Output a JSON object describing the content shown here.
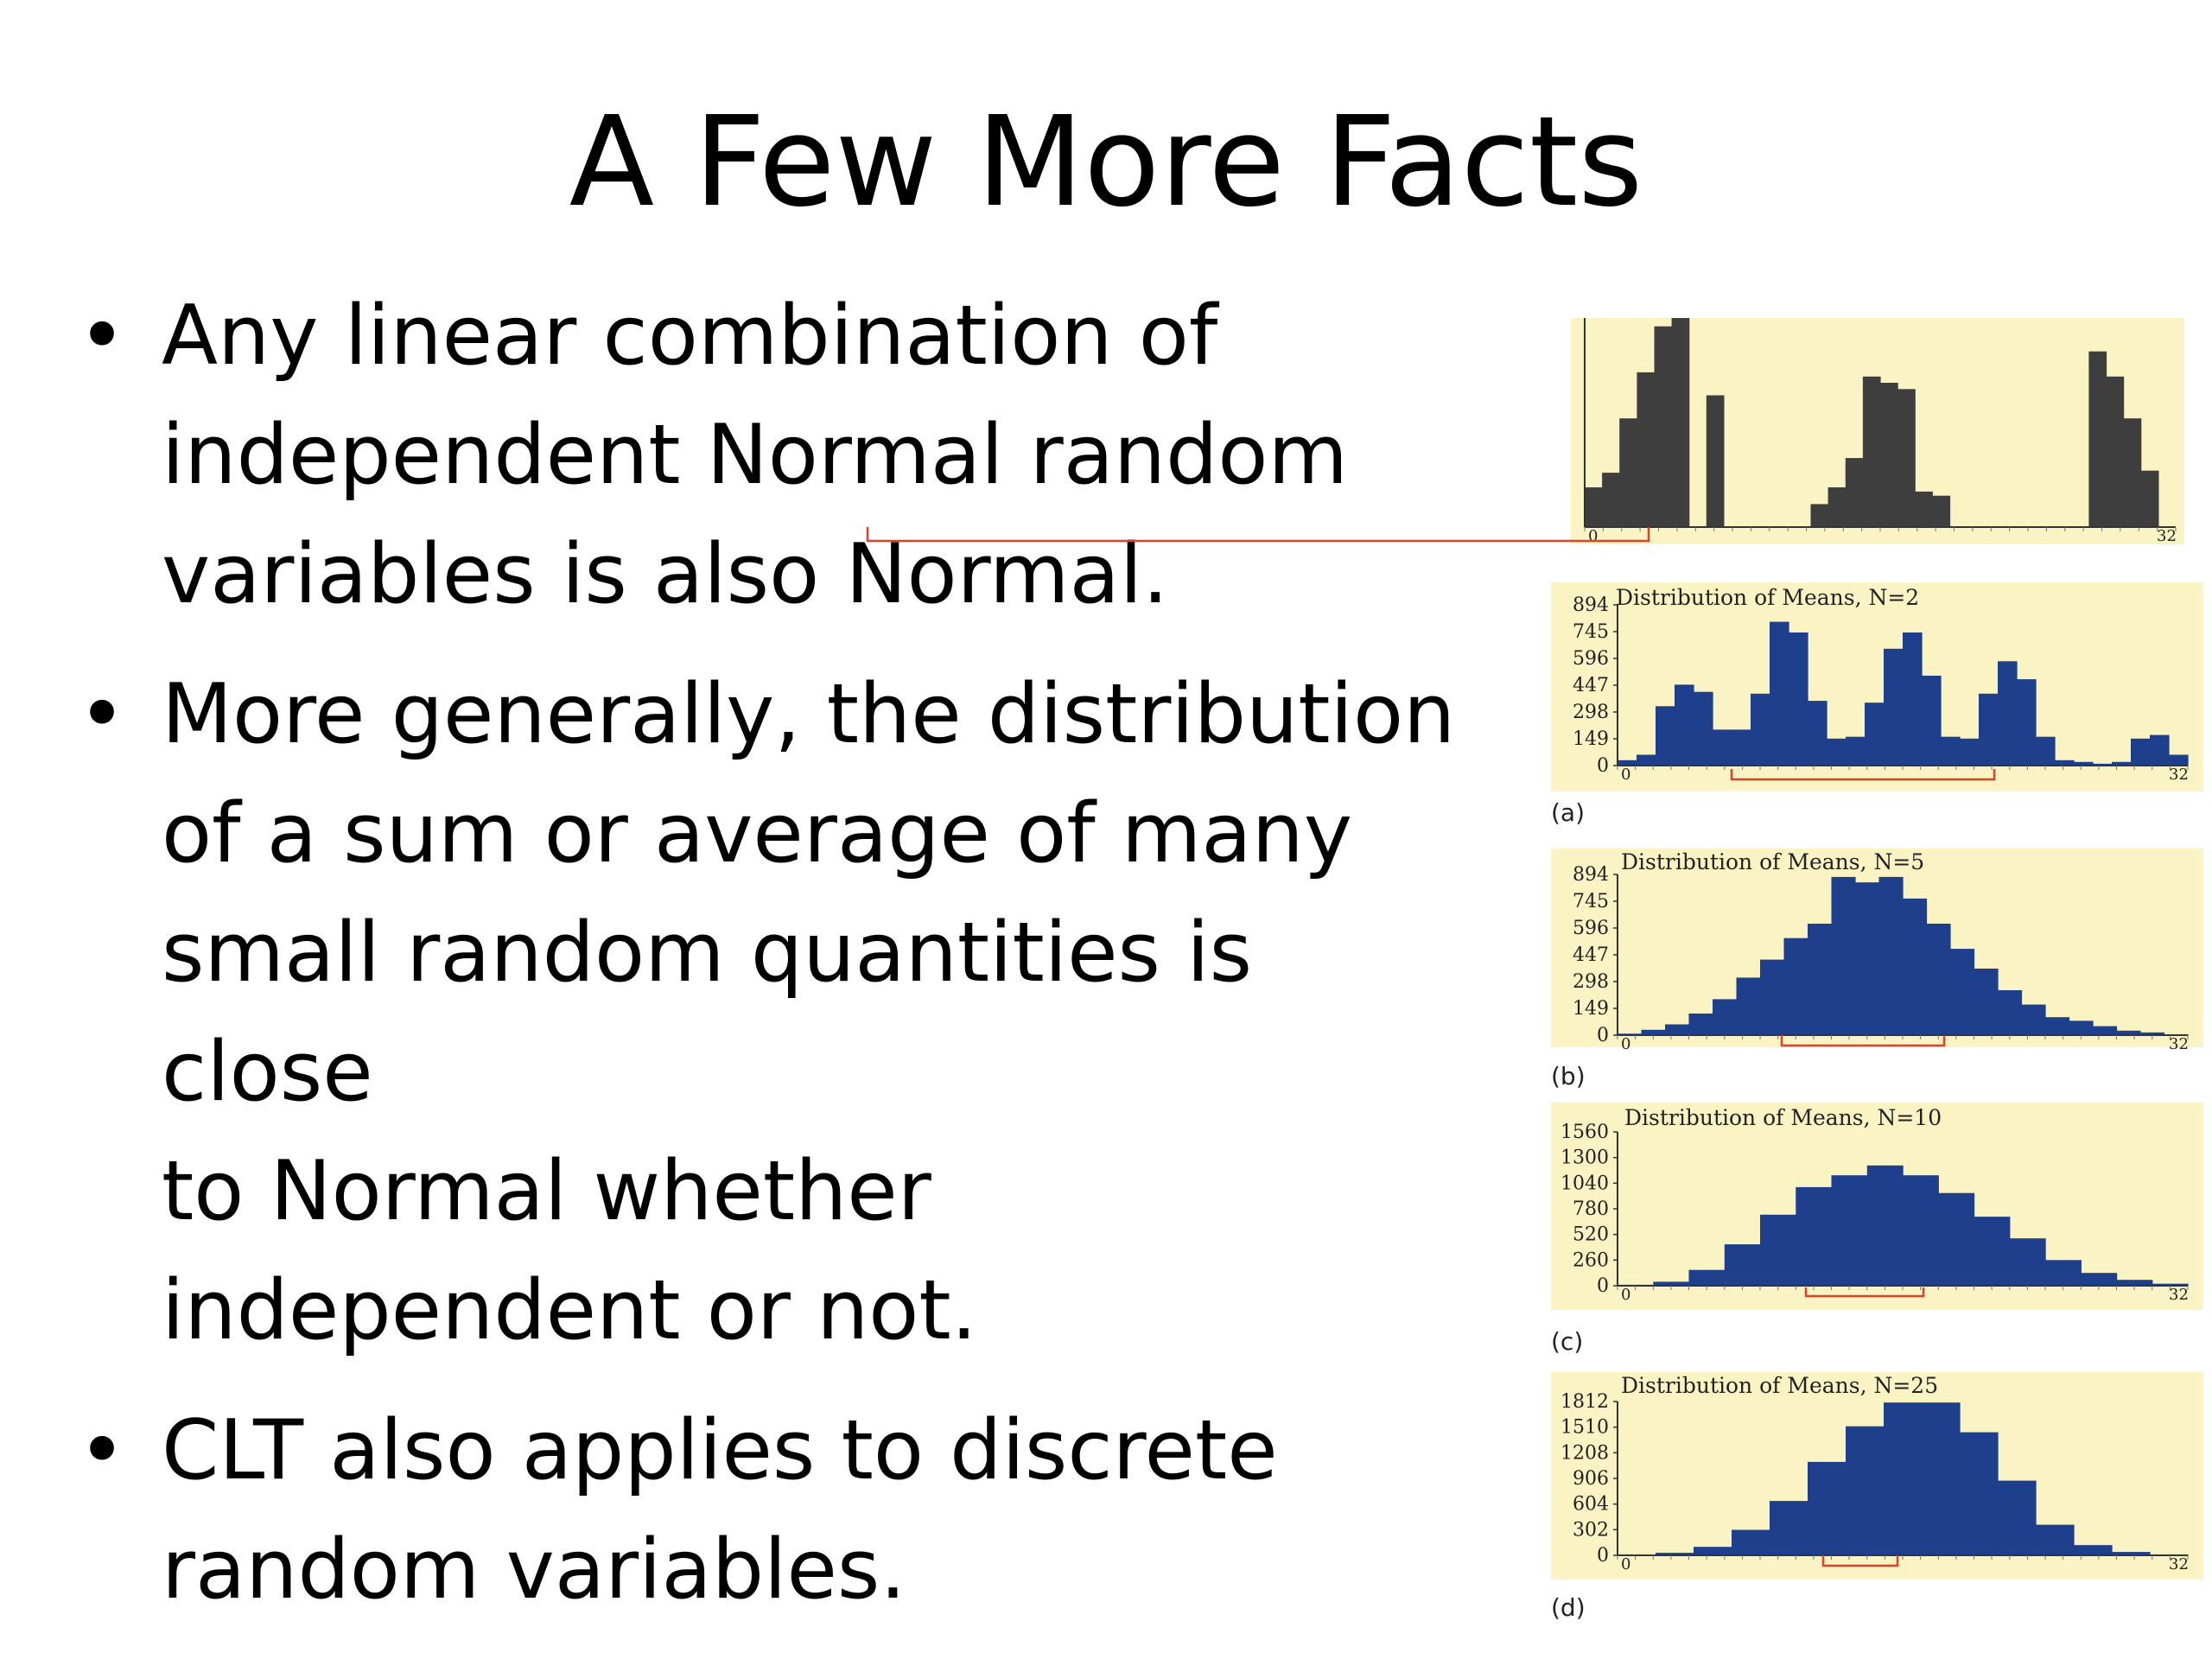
{
  "slide": {
    "title": "A Few More Facts",
    "bullets": [
      {
        "lines": [
          "Any linear combination of",
          "independent Normal random",
          "variables is also Normal."
        ]
      },
      {
        "lines": [
          "More generally, the distribution",
          "of a sum or average of many",
          "small random quantities is close",
          "to Normal whether",
          "independent or not."
        ]
      },
      {
        "lines": [
          "CLT also applies to discrete",
          "random variables."
        ]
      }
    ],
    "bullet_glyph": "•"
  },
  "colors": {
    "panel_bg": "#faf3c4",
    "source_bar": "#3e3e3e",
    "mean_bar": "#1d3f8c",
    "bracket": "#d9452a",
    "axis": "#333333"
  },
  "chart_data": [
    {
      "type": "bar",
      "panel": "source",
      "title": "",
      "x_range": [
        0,
        32
      ],
      "x_end_labels": [
        "0",
        "32"
      ],
      "values": [
        0.19,
        0.26,
        0.52,
        0.74,
        0.96,
        1.0,
        0.0,
        0.63,
        0.0,
        0.0,
        0.0,
        0.0,
        0.0,
        0.11,
        0.19,
        0.33,
        0.72,
        0.69,
        0.66,
        0.17,
        0.15,
        0.0,
        0.0,
        0.0,
        0.0,
        0.0,
        0.0,
        0.0,
        0.0,
        0.84,
        0.72,
        0.52,
        0.27,
        0.0
      ]
    },
    {
      "type": "bar",
      "panel": "a",
      "label": "(a)",
      "title": "Distribution of Means, N=2",
      "yticks": [
        "894",
        "745",
        "596",
        "447",
        "298",
        "149",
        "0"
      ],
      "ylim": [
        0,
        894
      ],
      "x_end_labels": [
        "0",
        "32"
      ],
      "values": [
        30,
        60,
        330,
        450,
        410,
        200,
        200,
        400,
        800,
        740,
        360,
        150,
        160,
        350,
        650,
        740,
        500,
        160,
        150,
        400,
        580,
        480,
        160,
        30,
        20,
        10,
        20,
        150,
        170,
        60
      ]
    },
    {
      "type": "bar",
      "panel": "b",
      "label": "(b)",
      "title": "Distribution of Means, N=5",
      "yticks": [
        "894",
        "745",
        "596",
        "447",
        "298",
        "149",
        "0"
      ],
      "ylim": [
        0,
        894
      ],
      "x_end_labels": [
        "0",
        "32"
      ],
      "values": [
        8,
        30,
        60,
        120,
        200,
        320,
        420,
        540,
        620,
        880,
        850,
        880,
        760,
        620,
        480,
        370,
        250,
        170,
        100,
        80,
        50,
        25,
        15,
        5
      ]
    },
    {
      "type": "bar",
      "panel": "c",
      "label": "(c)",
      "title": "Distribution of Means, N=10",
      "yticks": [
        "1560",
        "1300",
        "1040",
        "780",
        "520",
        "260",
        "0"
      ],
      "ylim": [
        0,
        1560
      ],
      "x_end_labels": [
        "0",
        "32"
      ],
      "values": [
        10,
        40,
        160,
        420,
        720,
        1000,
        1120,
        1220,
        1120,
        940,
        700,
        480,
        260,
        130,
        60,
        20
      ]
    },
    {
      "type": "bar",
      "panel": "d",
      "label": "(d)",
      "title": "Distribution of Means, N=25",
      "yticks": [
        "1812",
        "1510",
        "1208",
        "906",
        "604",
        "302",
        "0"
      ],
      "ylim": [
        0,
        1812
      ],
      "x_end_labels": [
        "0",
        "32"
      ],
      "values": [
        10,
        30,
        100,
        300,
        640,
        1100,
        1520,
        1800,
        1800,
        1450,
        880,
        360,
        120,
        40,
        10
      ]
    }
  ]
}
